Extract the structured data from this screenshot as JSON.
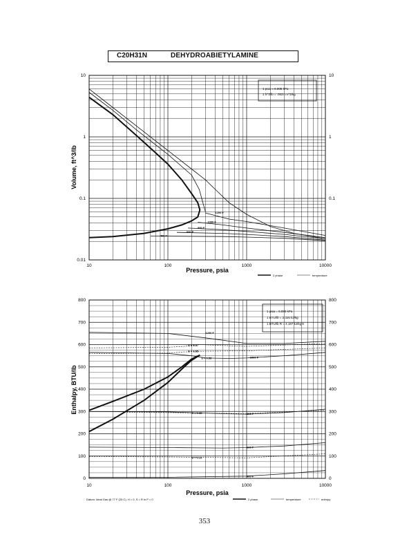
{
  "header": {
    "formula": "C20H31N",
    "compound": "DEHYDROABIETYLAMINE"
  },
  "page_number": "353",
  "chart_data": [
    {
      "type": "line",
      "x_scale": "log",
      "y_scale": "log",
      "xlim": [
        10,
        10000
      ],
      "ylim": [
        0.01,
        10
      ],
      "xlabel": "Pressure,  psia",
      "ylabel": "Volume, ft^3/lb",
      "x_ticks": [
        "10",
        "100",
        "1000",
        "10000"
      ],
      "y_ticks_left": [
        "0.01",
        "0.1",
        "1",
        "10"
      ],
      "y_ticks_right": [
        "0.1",
        "1",
        "10"
      ],
      "grid": true,
      "conversion_box": [
        "1 psia = 6.895 kPa",
        "1 ft^3/lb = .0624 m^3/kg"
      ],
      "legend": [
        "2 phase",
        "temperature"
      ],
      "series": [
        {
          "name": "2 phase",
          "style": "bold",
          "x": [
            10,
            20,
            40,
            70,
            100,
            150,
            200,
            240,
            255,
            240,
            200,
            150,
            100,
            50,
            20,
            10
          ],
          "y": [
            4.4,
            2.3,
            1.05,
            0.55,
            0.36,
            0.2,
            0.12,
            0.085,
            0.065,
            0.05,
            0.043,
            0.037,
            0.032,
            0.027,
            0.024,
            0.023
          ]
        },
        {
          "name": "",
          "x": [
            10,
            20,
            40,
            100,
            200,
            300,
            400,
            600,
            1000,
            2000,
            4000,
            10000
          ],
          "y": [
            6.0,
            3.0,
            1.5,
            0.6,
            0.3,
            0.2,
            0.14,
            0.085,
            0.055,
            0.035,
            0.027,
            0.022
          ]
        },
        {
          "name": "",
          "x": [
            10,
            20,
            40,
            100,
            200,
            250,
            300
          ],
          "y": [
            5.3,
            2.7,
            1.3,
            0.52,
            0.24,
            0.14,
            0.06
          ]
        },
        {
          "name": "1200 F",
          "x": [
            300,
            600,
            1000,
            3000,
            10000
          ],
          "y": [
            0.058,
            0.046,
            0.042,
            0.033,
            0.025
          ]
        },
        {
          "name": "1000 F",
          "x": [
            240,
            500,
            1000,
            3000,
            10000
          ],
          "y": [
            0.041,
            0.037,
            0.033,
            0.028,
            0.023
          ]
        },
        {
          "name": "800 F",
          "x": [
            180,
            500,
            1000,
            3000,
            10000
          ],
          "y": [
            0.033,
            0.031,
            0.029,
            0.026,
            0.022
          ]
        },
        {
          "name": "600 F",
          "x": [
            130,
            500,
            1000,
            3000,
            10000
          ],
          "y": [
            0.028,
            0.027,
            0.026,
            0.024,
            0.021
          ]
        },
        {
          "name": "400 F",
          "x": [
            60,
            500,
            1000,
            3000,
            10000
          ],
          "y": [
            0.0245,
            0.024,
            0.0235,
            0.0225,
            0.0205
          ]
        }
      ]
    },
    {
      "type": "line",
      "x_scale": "log",
      "y_scale": "linear",
      "xlim": [
        10,
        10000
      ],
      "ylim": [
        0,
        800
      ],
      "xlabel": "Pressure,  psia",
      "ylabel": "Enthalpy, BTU/lb",
      "x_ticks": [
        "10",
        "100",
        "1000",
        "10000"
      ],
      "y_ticks": [
        "0",
        "100",
        "200",
        "300",
        "400",
        "500",
        "600",
        "700",
        "800"
      ],
      "grid": true,
      "conversion_box": [
        "1 psia = 6.895 kPa",
        "1 BTU/lb = 2.326 kJ/kg",
        "1 BTU/lb R = 4.187 kJ/kg K"
      ],
      "legend": [
        "2 phase",
        "temperature",
        "entropy"
      ],
      "footnote": "Datum: Ideal Gas @ 77 F (25 C),  H = 0,  S = R ln P = 0",
      "series": [
        {
          "name": "2 phase liquid",
          "style": "bold",
          "x": [
            10,
            20,
            50,
            100,
            150,
            200,
            255
          ],
          "y": [
            210,
            265,
            350,
            430,
            490,
            530,
            553
          ]
        },
        {
          "name": "2 phase vapor",
          "style": "bold",
          "x": [
            10,
            20,
            50,
            100,
            150,
            200,
            255
          ],
          "y": [
            305,
            345,
            400,
            455,
            500,
            535,
            553
          ]
        },
        {
          "name": "1200 F",
          "x": [
            10,
            100,
            300,
            1000,
            3000,
            10000
          ],
          "y": [
            655,
            650,
            630,
            605,
            605,
            615
          ]
        },
        {
          "name": "1000 F",
          "x": [
            10,
            100,
            200,
            300,
            600,
            1000,
            3000,
            10000
          ],
          "y": [
            565,
            560,
            550,
            540,
            538,
            540,
            550,
            565
          ]
        },
        {
          "name": "800 F",
          "x": [
            10,
            100,
            500,
            1000,
            3000,
            10000
          ],
          "y": [
            300,
            298,
            290,
            288,
            295,
            310
          ]
        },
        {
          "name": "600 F",
          "x": [
            10,
            100,
            500,
            1000,
            3000,
            10000
          ],
          "y": [
            140,
            138,
            136,
            138,
            145,
            160
          ]
        },
        {
          "name": "400 F",
          "x": [
            10,
            100,
            1000,
            3000,
            10000
          ],
          "y": [
            5,
            5,
            10,
            20,
            35
          ]
        }
      ],
      "entropy_labels": [
        "S = 0.57",
        "S = 0.55",
        "S = 0.53",
        "S = 0.35",
        "S = 0.15"
      ]
    }
  ]
}
